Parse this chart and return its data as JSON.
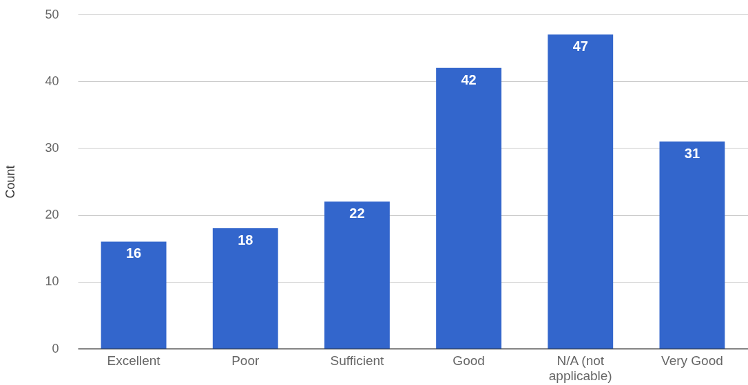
{
  "chart_data": {
    "type": "bar",
    "ylabel": "Count",
    "categories": [
      "Excellent",
      "Poor",
      "Sufficient",
      "Good",
      "N/A (not applicable)",
      "Very Good"
    ],
    "values": [
      16,
      18,
      22,
      42,
      47,
      31
    ],
    "color": "#3366cc",
    "ylim": [
      0,
      50
    ],
    "yticks": [
      0,
      10,
      20,
      30,
      40,
      50
    ],
    "grid": "y",
    "data_labels": true
  }
}
